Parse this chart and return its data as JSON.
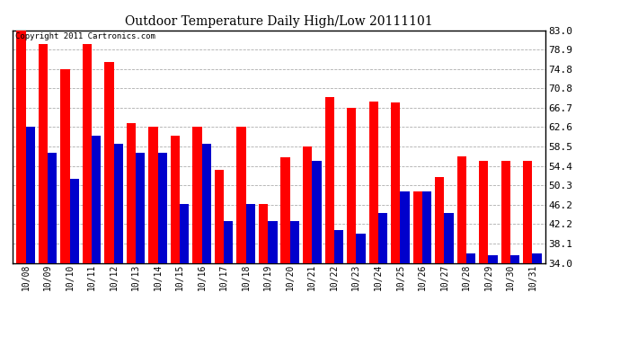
{
  "title": "Outdoor Temperature Daily High/Low 20111101",
  "copyright": "Copyright 2011 Cartronics.com",
  "dates": [
    "10/08",
    "10/09",
    "10/10",
    "10/11",
    "10/12",
    "10/13",
    "10/14",
    "10/15",
    "10/16",
    "10/17",
    "10/18",
    "10/19",
    "10/20",
    "10/21",
    "10/22",
    "10/23",
    "10/24",
    "10/25",
    "10/26",
    "10/27",
    "10/28",
    "10/29",
    "10/30",
    "10/31"
  ],
  "highs": [
    83.0,
    80.2,
    74.8,
    80.2,
    76.3,
    63.5,
    62.6,
    60.8,
    62.6,
    53.6,
    62.6,
    46.4,
    56.3,
    58.5,
    68.9,
    66.7,
    68.0,
    67.8,
    49.0,
    52.0,
    56.5,
    55.4,
    55.4,
    55.4
  ],
  "lows": [
    62.6,
    57.2,
    51.8,
    60.8,
    59.0,
    57.2,
    57.2,
    46.4,
    59.0,
    42.8,
    46.4,
    42.8,
    42.8,
    55.4,
    41.0,
    40.1,
    44.6,
    49.0,
    49.1,
    44.6,
    36.0,
    35.6,
    35.6,
    36.0
  ],
  "high_color": "#ff0000",
  "low_color": "#0000cc",
  "bg_color": "#ffffff",
  "grid_color": "#999999",
  "yticks": [
    34.0,
    38.1,
    42.2,
    46.2,
    50.3,
    54.4,
    58.5,
    62.6,
    66.7,
    70.8,
    74.8,
    78.9,
    83.0
  ],
  "ymin": 34.0,
  "ymax": 83.0,
  "bar_width": 0.42,
  "figwidth": 6.9,
  "figheight": 3.75,
  "dpi": 100
}
